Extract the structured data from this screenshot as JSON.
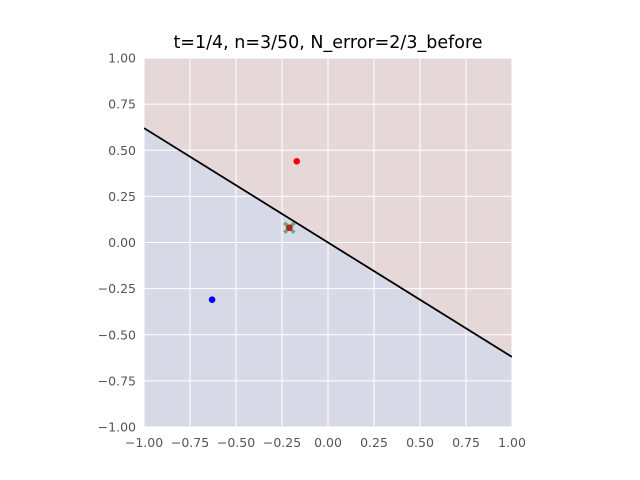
{
  "chart_data": {
    "type": "scatter",
    "title": "t=1/4, n=3/50, N_error=2/3_before",
    "xlabel": "",
    "ylabel": "",
    "xlim": [
      -1.0,
      1.0
    ],
    "ylim": [
      -1.0,
      1.0
    ],
    "grid": true,
    "x_ticks": [
      -1.0,
      -0.75,
      -0.5,
      -0.25,
      0.0,
      0.25,
      0.5,
      0.75,
      1.0
    ],
    "y_ticks": [
      -1.0,
      -0.75,
      -0.5,
      -0.25,
      0.0,
      0.25,
      0.5,
      0.75,
      1.0
    ],
    "x_tick_labels": [
      "−1.00",
      "−0.75",
      "−0.50",
      "−0.25",
      "0.00",
      "0.25",
      "0.50",
      "0.75",
      "1.00"
    ],
    "y_tick_labels": [
      "−1.00",
      "−0.75",
      "−0.50",
      "−0.25",
      "0.00",
      "0.25",
      "0.50",
      "0.75",
      "1.00"
    ],
    "regions": {
      "upper_color": "#e6d8d9",
      "lower_color": "#d8d9e6"
    },
    "decision_boundary": {
      "points": [
        [
          -1.0,
          0.62
        ],
        [
          1.0,
          -0.62
        ]
      ],
      "color": "#000000"
    },
    "points": [
      {
        "x": -0.17,
        "y": 0.44,
        "color": "#ff0000",
        "marker": "dot"
      },
      {
        "x": -0.63,
        "y": -0.31,
        "color": "#0000ff",
        "marker": "dot"
      },
      {
        "x": -0.21,
        "y": 0.08,
        "color": "#b22222",
        "marker": "dot"
      }
    ],
    "highlight": {
      "x": -0.21,
      "y": 0.08,
      "color": "#5aa05a",
      "marker": "x"
    }
  }
}
